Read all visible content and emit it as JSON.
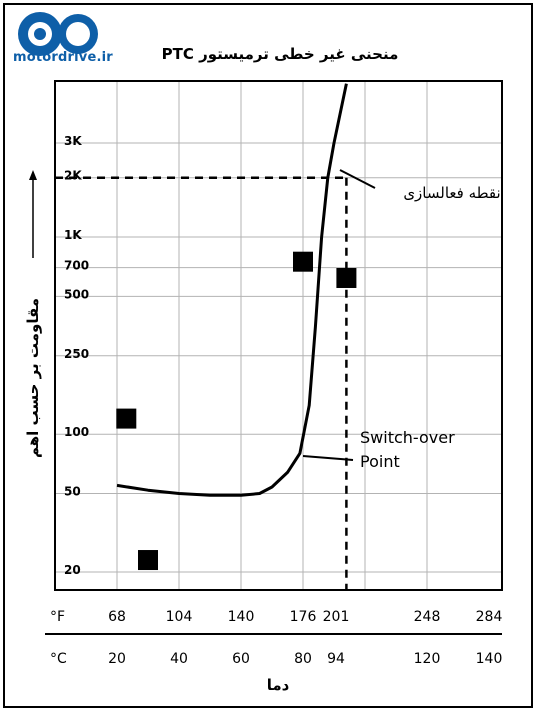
{
  "brand": {
    "logo_text": "motordrive.ir",
    "brand_color": "#0e5fa8"
  },
  "chart_data": {
    "type": "line",
    "title": "منحنی غیر خطی ترمیستور PTC",
    "ylabel": "مقاومت بر حسب اهم",
    "xlabel": "دما",
    "y_scale": "log",
    "y_ticks": [
      "3K",
      "2K",
      "1K",
      "700",
      "500",
      "250",
      "100",
      "50",
      "20"
    ],
    "x_ticks_f_unit": "°F",
    "x_ticks_f": [
      "68",
      "104",
      "140",
      "176",
      "201",
      "248",
      "284"
    ],
    "x_ticks_c_unit": "°C",
    "x_ticks_c": [
      "20",
      "40",
      "60",
      "80",
      "94",
      "120",
      "140"
    ],
    "series": [
      {
        "x": [
          20,
          30,
          40,
          50,
          60,
          66,
          70,
          75,
          79,
          82,
          84,
          86,
          88,
          90,
          94
        ],
        "y": [
          55,
          52,
          50,
          49,
          49,
          50,
          54,
          64,
          80,
          140,
          350,
          1000,
          2000,
          3000,
          6000
        ]
      }
    ],
    "markers": [
      {
        "x": 23,
        "y": 120
      },
      {
        "x": 30,
        "y": 23
      },
      {
        "x": 80,
        "y": 750
      },
      {
        "x": 94,
        "y": 620
      }
    ],
    "reference": {
      "x_c": 94,
      "y": 2000
    },
    "annotations": [
      {
        "text": "نقطه فعالسازی"
      },
      {
        "text": "Switch-over"
      },
      {
        "text": "Point"
      }
    ],
    "grid": true,
    "colors": {
      "line": "#000000",
      "grid": "#b3b3b3",
      "marker": "#000000"
    }
  }
}
